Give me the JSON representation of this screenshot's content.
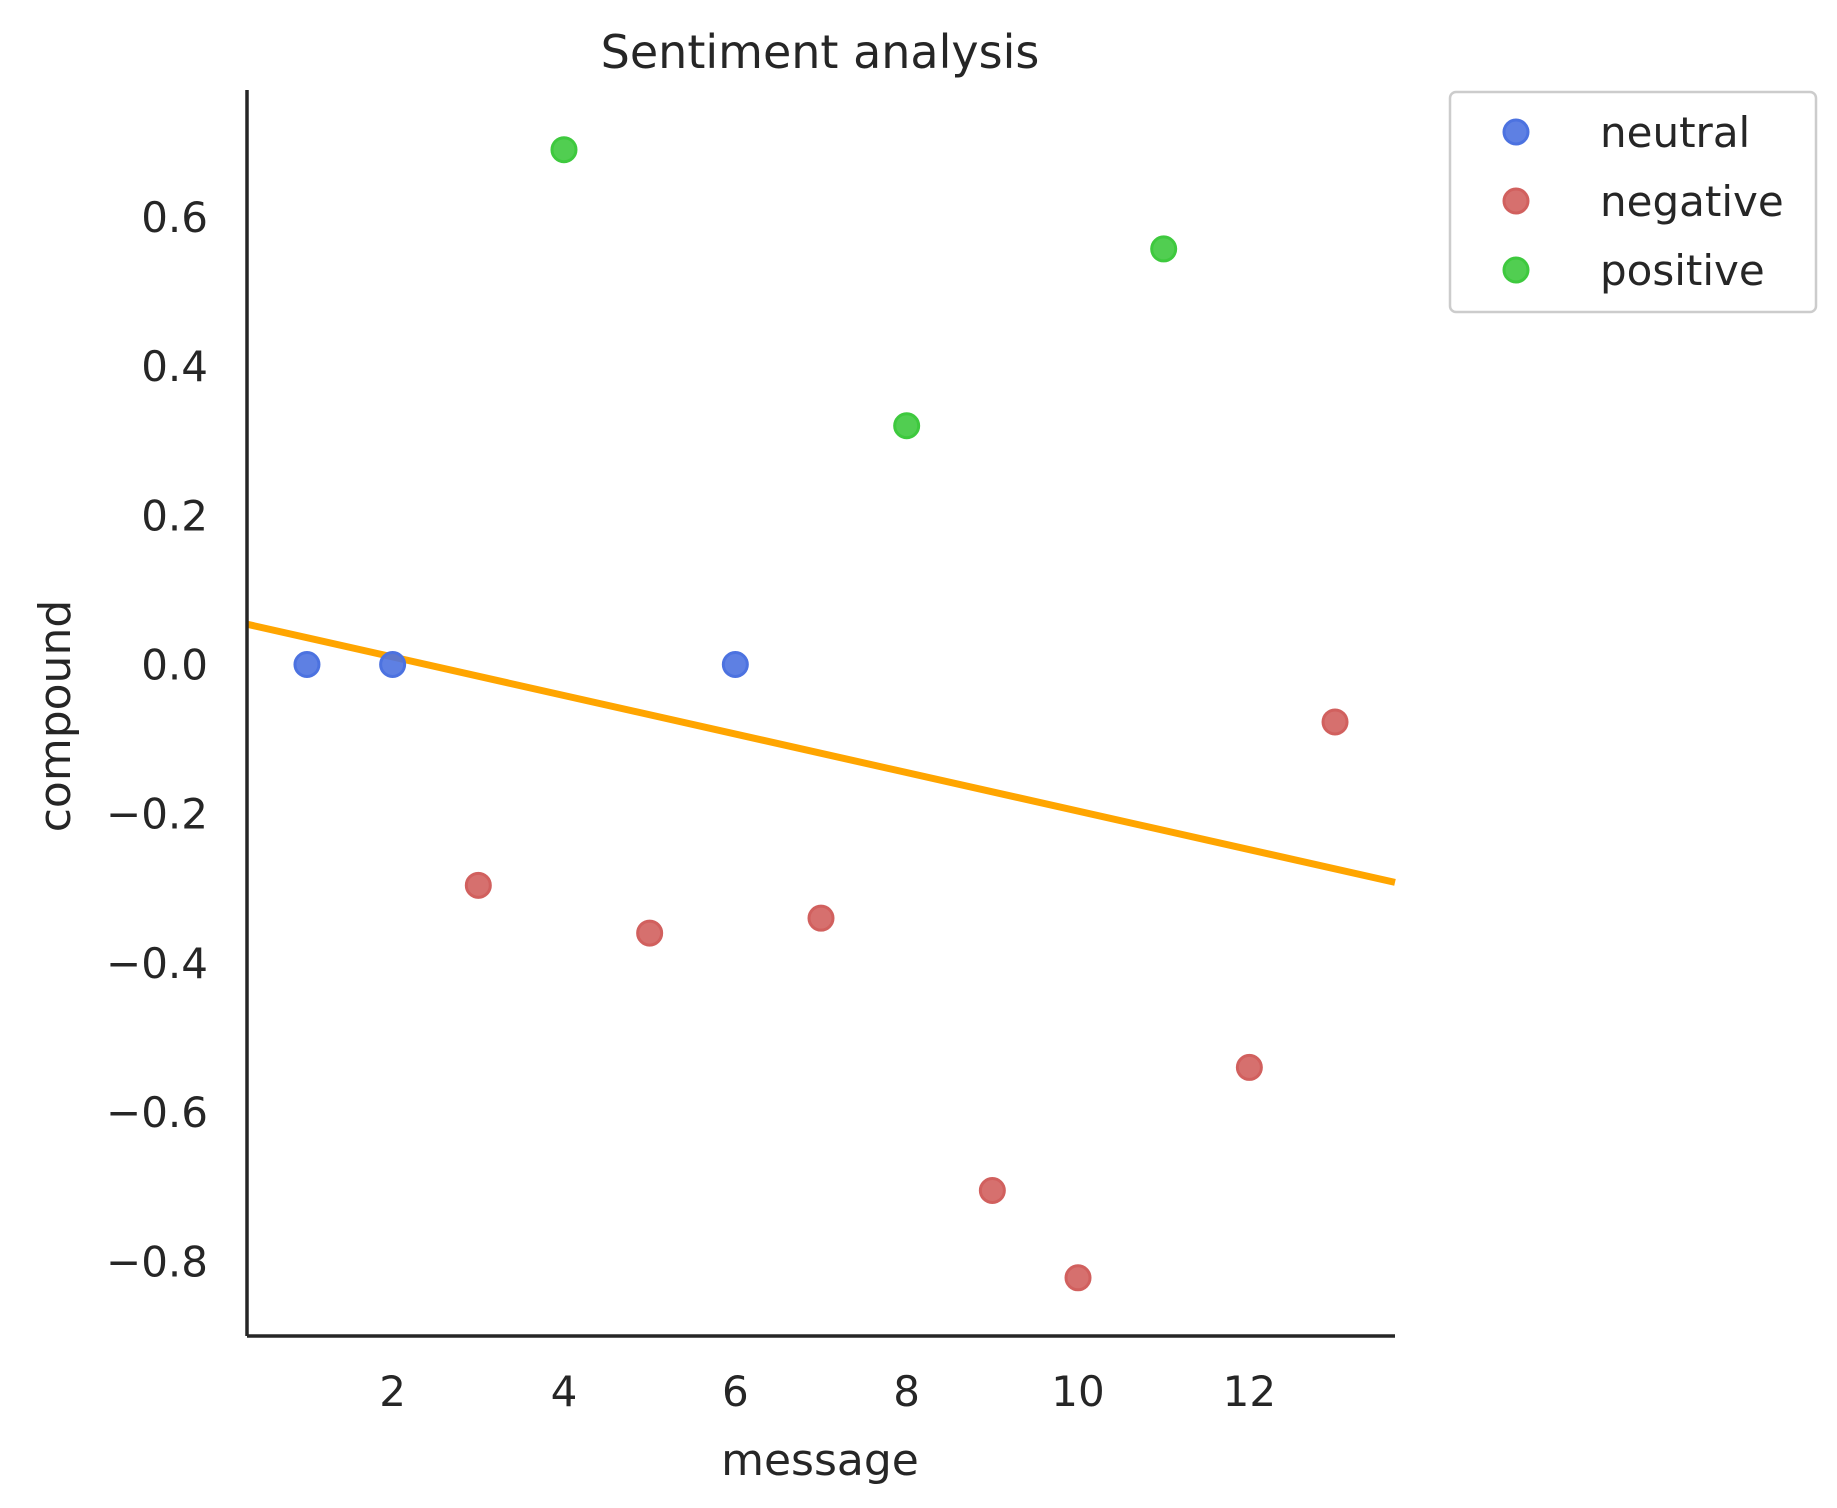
{
  "chart_data": {
    "type": "scatter",
    "title": "Sentiment analysis",
    "xlabel": "message",
    "ylabel": "compound",
    "xlim": [
      0.3,
      13.7
    ],
    "ylim": [
      -0.9,
      0.77
    ],
    "xticks": [
      {
        "value": 2,
        "label": "2"
      },
      {
        "value": 4,
        "label": "4"
      },
      {
        "value": 6,
        "label": "6"
      },
      {
        "value": 8,
        "label": "8"
      },
      {
        "value": 10,
        "label": "10"
      },
      {
        "value": 12,
        "label": "12"
      }
    ],
    "yticks": [
      {
        "value": 0.6,
        "label": "0.6"
      },
      {
        "value": 0.4,
        "label": "0.4"
      },
      {
        "value": 0.2,
        "label": "0.2"
      },
      {
        "value": 0.0,
        "label": "0.0"
      },
      {
        "value": -0.2,
        "label": "−0.2"
      },
      {
        "value": -0.4,
        "label": "−0.4"
      },
      {
        "value": -0.6,
        "label": "−0.6"
      },
      {
        "value": -0.8,
        "label": "−0.8"
      }
    ],
    "grid": false,
    "legend_position": "outside-top-right",
    "series": [
      {
        "name": "neutral",
        "color": "#4c72e0",
        "points": [
          [
            1,
            0.0
          ],
          [
            2,
            0.0
          ],
          [
            6,
            0.0
          ]
        ]
      },
      {
        "name": "negative",
        "color": "#d1605e",
        "points": [
          [
            3,
            -0.296
          ],
          [
            5,
            -0.36
          ],
          [
            7,
            -0.34
          ],
          [
            9,
            -0.705
          ],
          [
            10,
            -0.822
          ],
          [
            12,
            -0.54
          ],
          [
            13,
            -0.077
          ]
        ]
      },
      {
        "name": "positive",
        "color": "#3ec93e",
        "points": [
          [
            4,
            0.69
          ],
          [
            8,
            0.32
          ],
          [
            11,
            0.557
          ]
        ]
      }
    ],
    "trendline": {
      "color": "#ffa500",
      "x": [
        0.3,
        13.7
      ],
      "y": [
        0.054,
        -0.292
      ]
    }
  }
}
